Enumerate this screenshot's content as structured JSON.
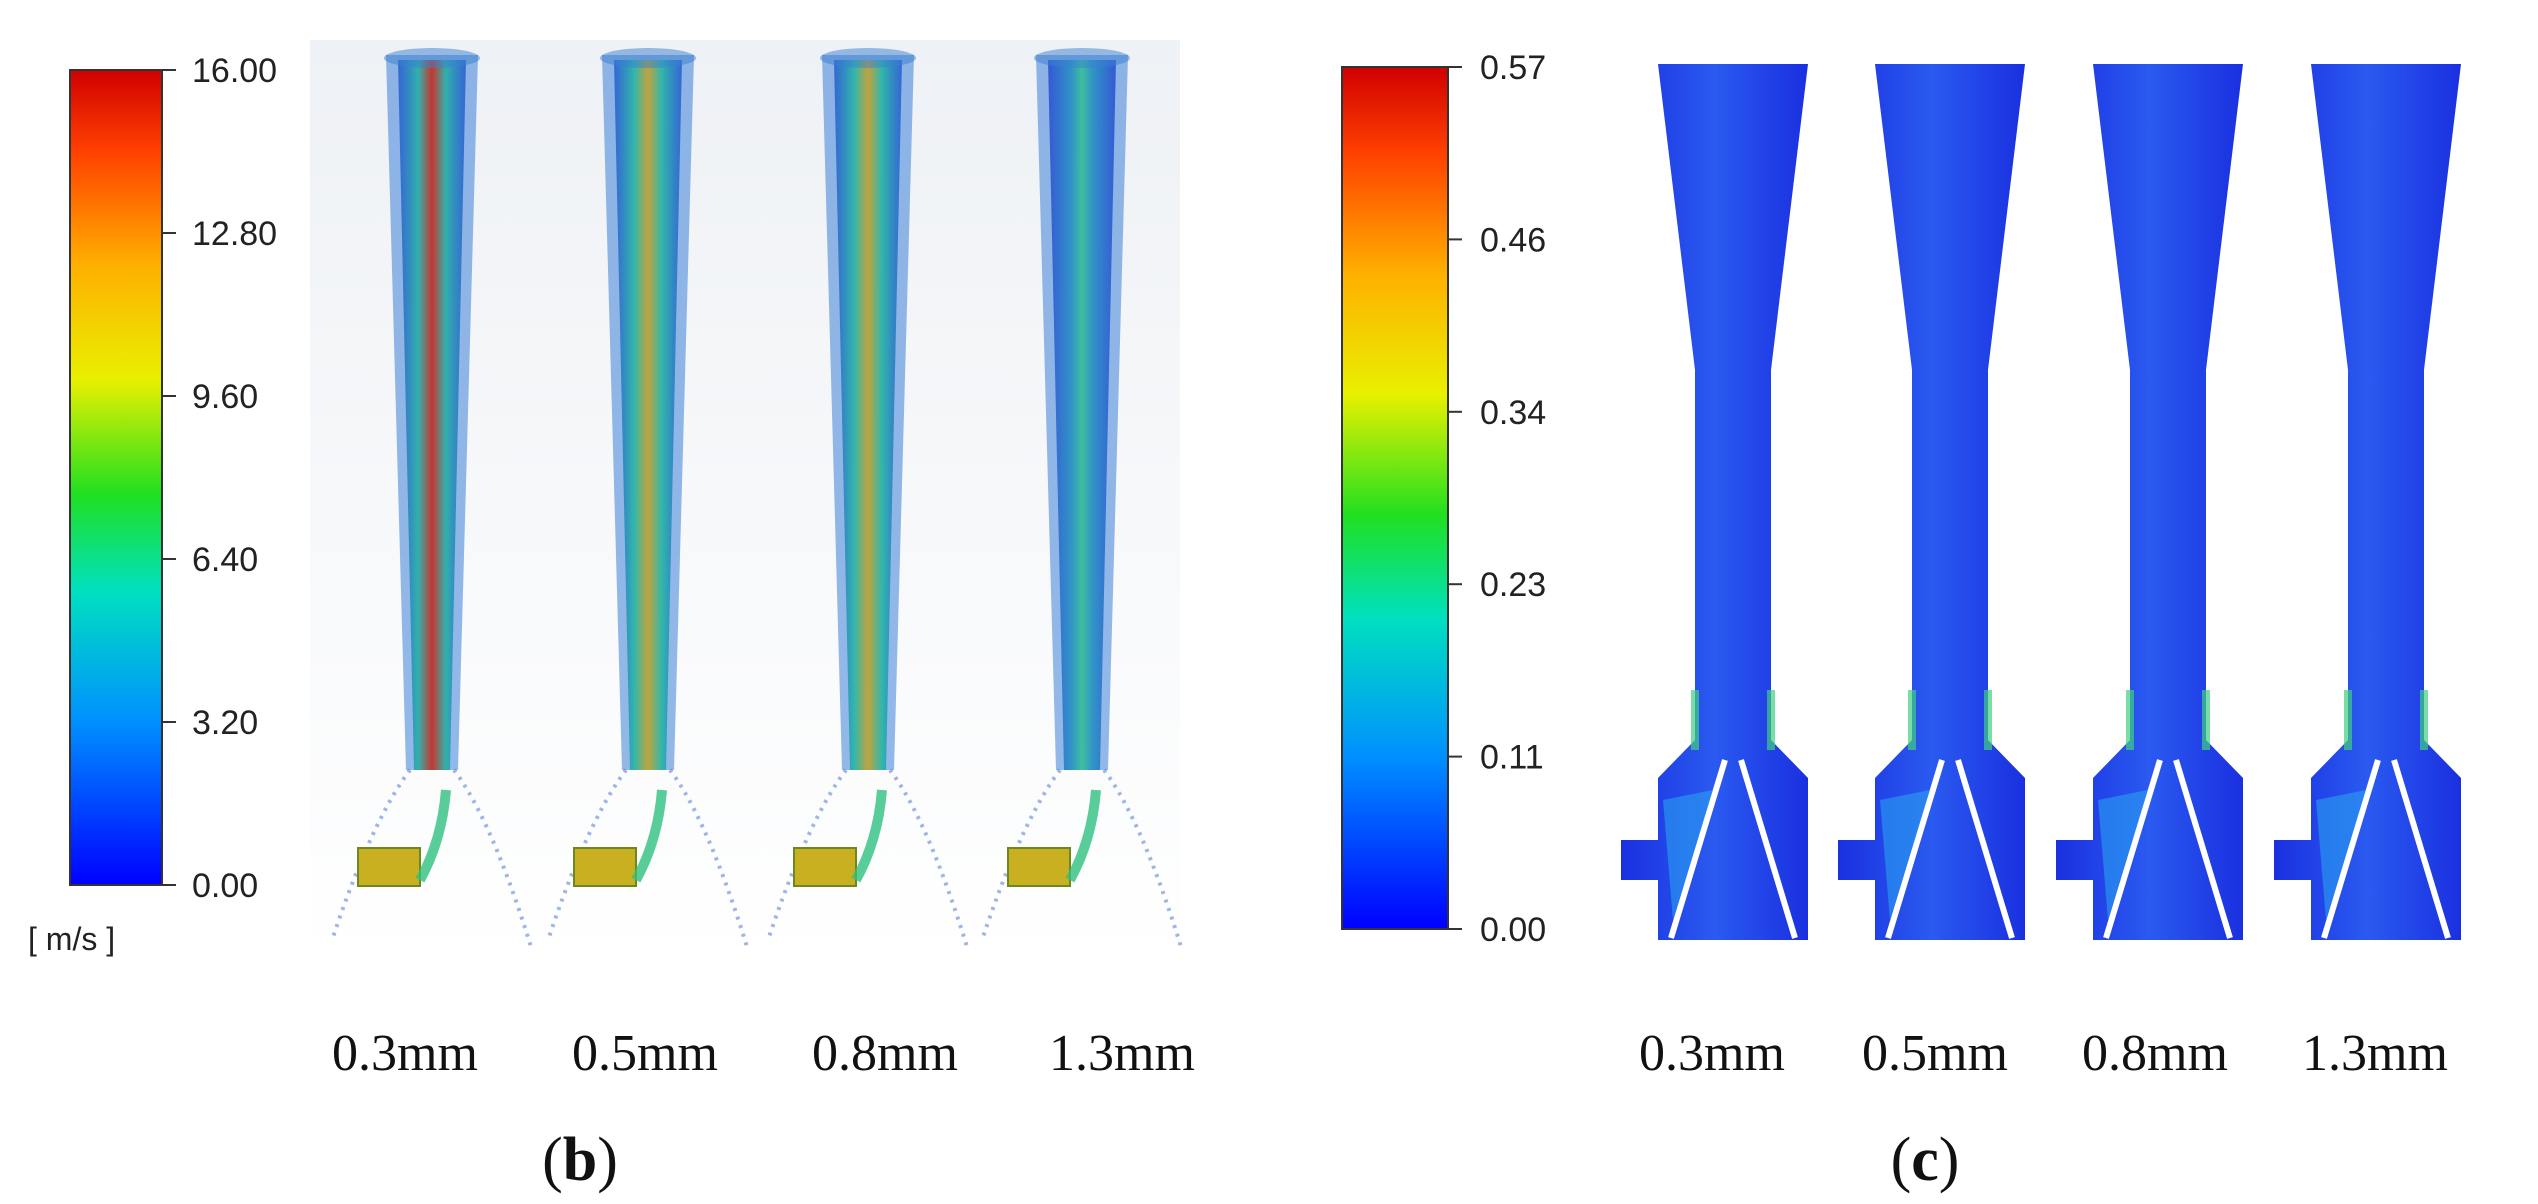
{
  "panel_b": {
    "label_open": "(",
    "label_letter": "b",
    "label_close": ")",
    "colorbar_ticks": [
      "16.00",
      "12.80",
      "9.60",
      "6.40",
      "3.20",
      "0.00"
    ],
    "unit": "[ m/s ]",
    "captions": [
      "0.3mm",
      "0.5mm",
      "0.8mm",
      "1.3mm"
    ]
  },
  "panel_c": {
    "label_open": "(",
    "label_letter": "c",
    "label_close": ")",
    "colorbar_ticks": [
      "0.57",
      "0.46",
      "0.34",
      "0.23",
      "0.11",
      "0.00"
    ],
    "captions": [
      "0.3mm",
      "0.5mm",
      "0.8mm",
      "1.3mm"
    ]
  },
  "colors": {
    "colormap": [
      "#0000ff",
      "#0090ff",
      "#00e0c0",
      "#20e020",
      "#e8f000",
      "#ffb000",
      "#ff4000",
      "#d00000"
    ],
    "nozzle_blue": "#1f3fe8",
    "stream_blue": "#2a8fd8"
  }
}
